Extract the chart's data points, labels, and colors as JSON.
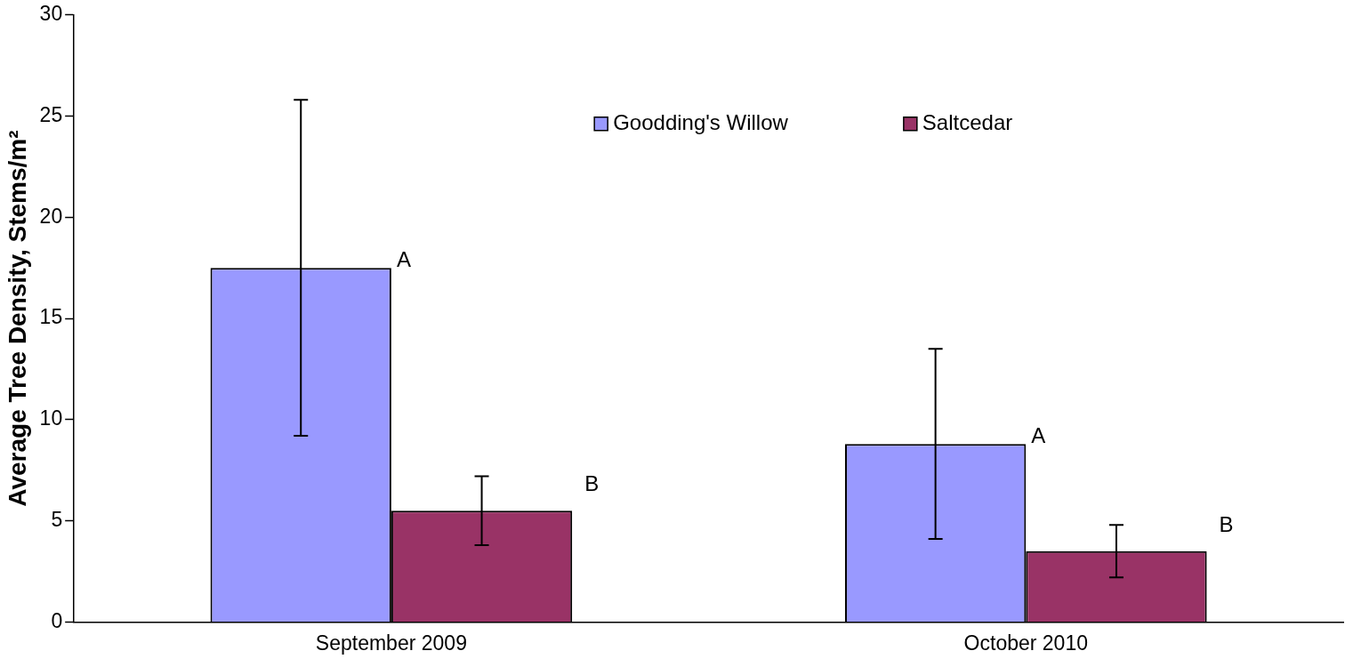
{
  "chart_data": {
    "type": "bar",
    "ylabel": "Average Tree Density, Stems/m²",
    "categories": [
      "September 2009",
      "October 2010"
    ],
    "series": [
      {
        "name": "Goodding's Willow",
        "color": "#9999ff",
        "values": [
          17.5,
          8.8
        ],
        "errors": [
          8.3,
          4.7
        ]
      },
      {
        "name": "Saltcedar",
        "color": "#993366",
        "values": [
          5.5,
          3.5
        ],
        "errors": [
          1.7,
          1.3
        ]
      }
    ],
    "ylim": [
      0,
      30
    ],
    "yticks": [
      0,
      5,
      10,
      15,
      20,
      25,
      30
    ],
    "grid": false,
    "legend": "top right",
    "annotations": [
      "A",
      "B",
      "A",
      "B"
    ]
  }
}
